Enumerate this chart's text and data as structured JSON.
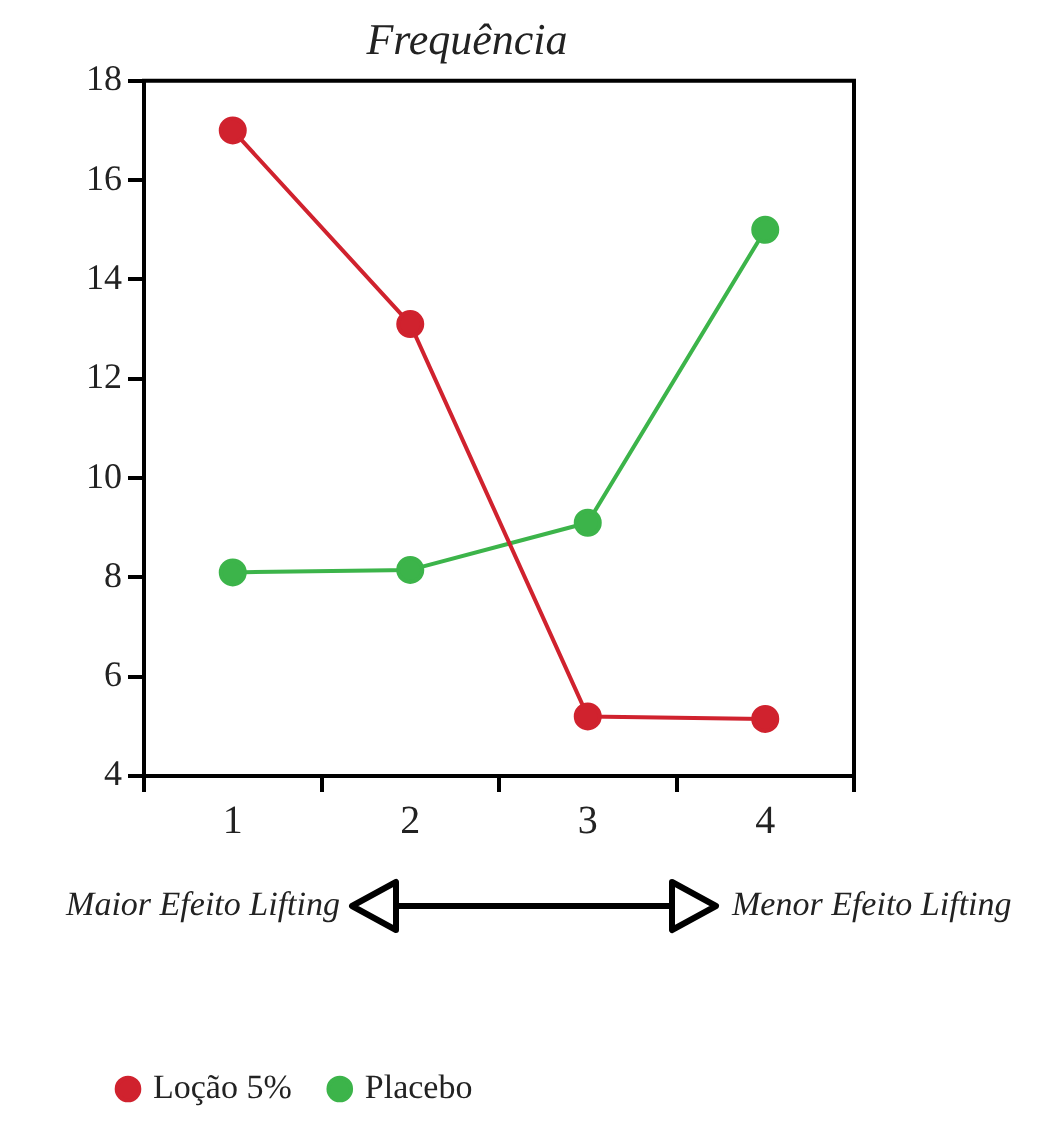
{
  "chart_data": {
    "type": "line",
    "title": "Frequência",
    "categories": [
      "1",
      "2",
      "3",
      "4"
    ],
    "series": [
      {
        "name": "Loção 5%",
        "color": "#d0222e",
        "values": [
          17,
          13.1,
          5.2,
          5.15
        ]
      },
      {
        "name": "Placebo",
        "color": "#3cb44a",
        "values": [
          8.1,
          8.15,
          9.1,
          15
        ]
      }
    ],
    "ylim": [
      4,
      18
    ],
    "yticks": [
      4,
      6,
      8,
      10,
      12,
      14,
      16,
      18
    ],
    "grid": false,
    "legend": "bottom left",
    "marker": "circle",
    "line_style": "solid",
    "annotations": [
      "Maior Efeito Lifting",
      "Menor Efeito Lifting"
    ]
  }
}
